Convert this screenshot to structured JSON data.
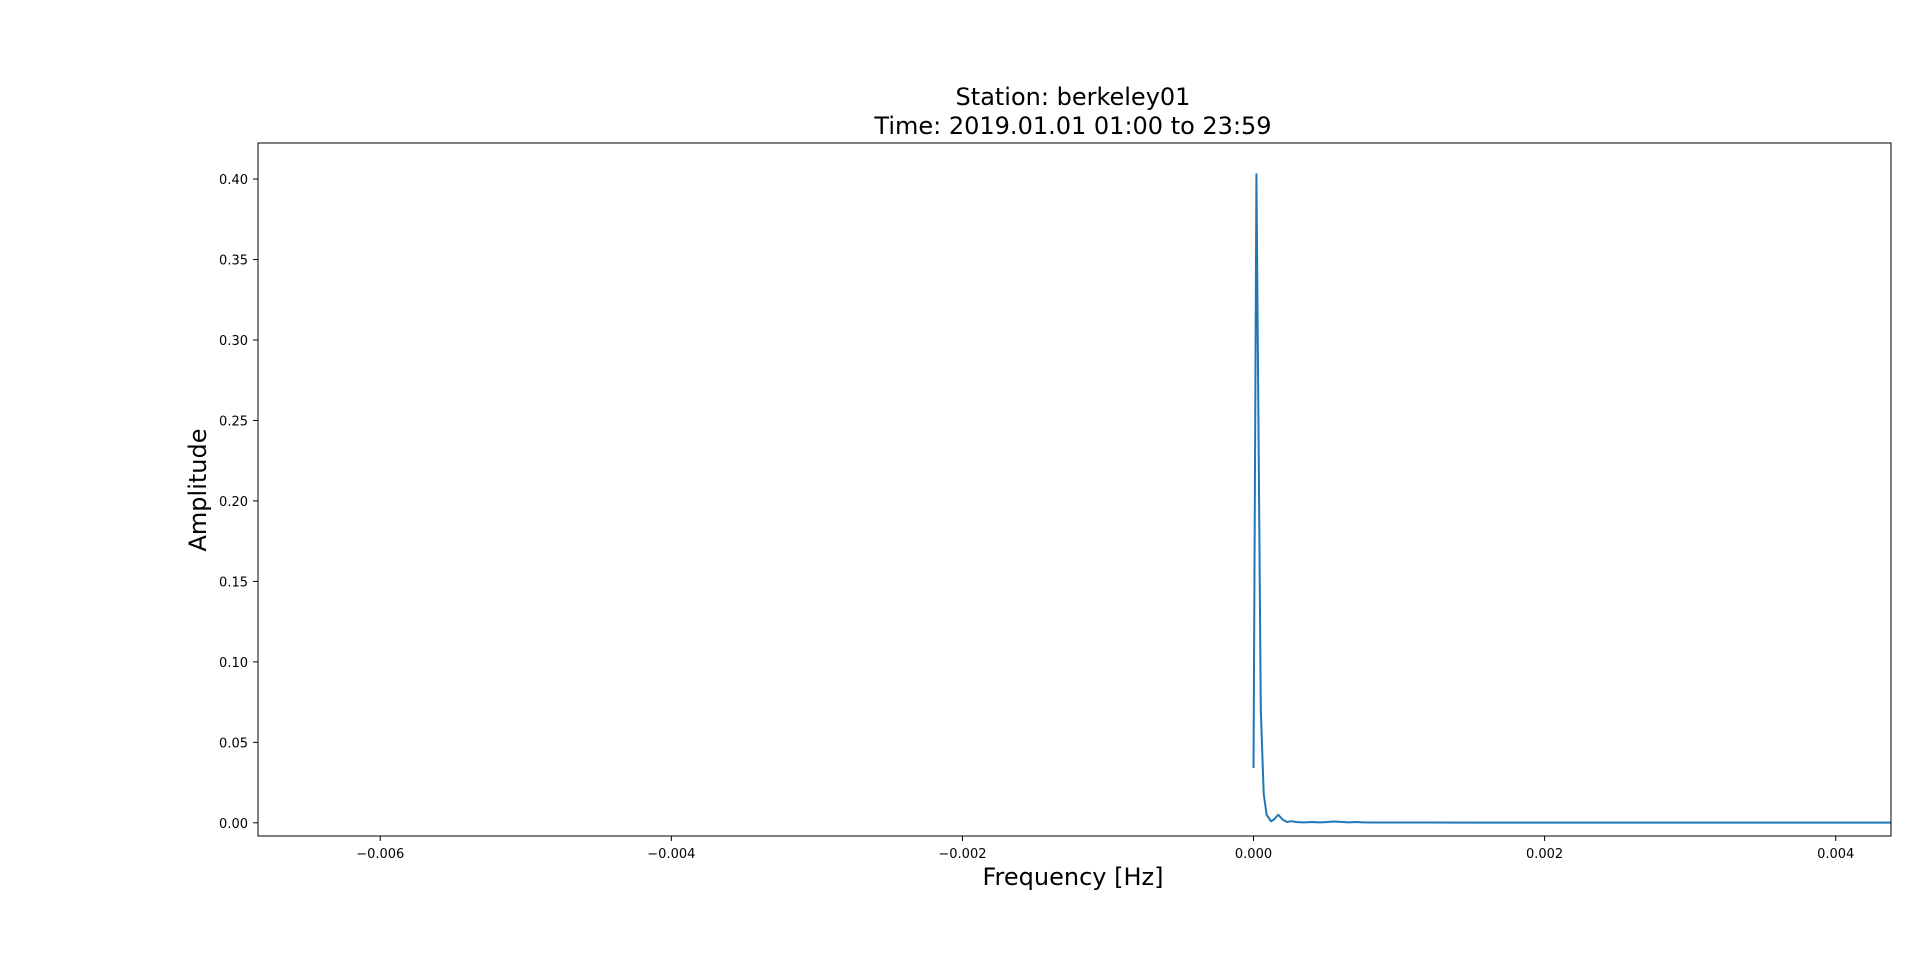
{
  "chart_data": {
    "type": "line",
    "title_line1": "Station: berkeley01",
    "title_line2": "Time: 2019.01.01 01:00 to 23:59",
    "xlabel": "Frequency [Hz]",
    "ylabel": "Amplitude",
    "xlim": [
      -0.00684,
      0.00438
    ],
    "ylim": [
      -0.0082,
      0.4224
    ],
    "xticks": [
      -0.006,
      -0.004,
      -0.002,
      0.0,
      0.002,
      0.004
    ],
    "xtick_labels": [
      "−0.006",
      "−0.004",
      "−0.002",
      "0.000",
      "0.002",
      "0.004"
    ],
    "yticks": [
      0.0,
      0.05,
      0.1,
      0.15,
      0.2,
      0.25,
      0.3,
      0.35,
      0.4
    ],
    "ytick_labels": [
      "0.00",
      "0.05",
      "0.10",
      "0.15",
      "0.20",
      "0.25",
      "0.30",
      "0.35",
      "0.40"
    ],
    "grid": false,
    "line_color": "#1f77b4",
    "series": [
      {
        "x": [
          0.0,
          2e-05,
          5e-05,
          7e-05,
          9e-05,
          0.00012,
          0.00014,
          0.00017,
          0.0002,
          0.00023,
          0.00026,
          0.0003,
          0.00035,
          0.0004,
          0.00045,
          0.0005,
          0.00055,
          0.0006,
          0.00065,
          0.0007,
          0.00075,
          0.0008,
          0.0009,
          0.001,
          0.0012,
          0.0015,
          0.002,
          0.0025,
          0.003,
          0.0035,
          0.0038,
          0.00438
        ],
        "y": [
          0.034,
          0.403,
          0.07,
          0.018,
          0.005,
          0.001,
          0.002,
          0.005,
          0.002,
          0.0005,
          0.001,
          0.0004,
          0.0003,
          0.0005,
          0.0003,
          0.0004,
          0.0008,
          0.0006,
          0.0003,
          0.0005,
          0.0003,
          0.0002,
          0.0002,
          0.0002,
          0.0002,
          0.0001,
          0.0001,
          0.0001,
          0.0001,
          0.0001,
          0.0001,
          0.0001
        ]
      }
    ]
  }
}
